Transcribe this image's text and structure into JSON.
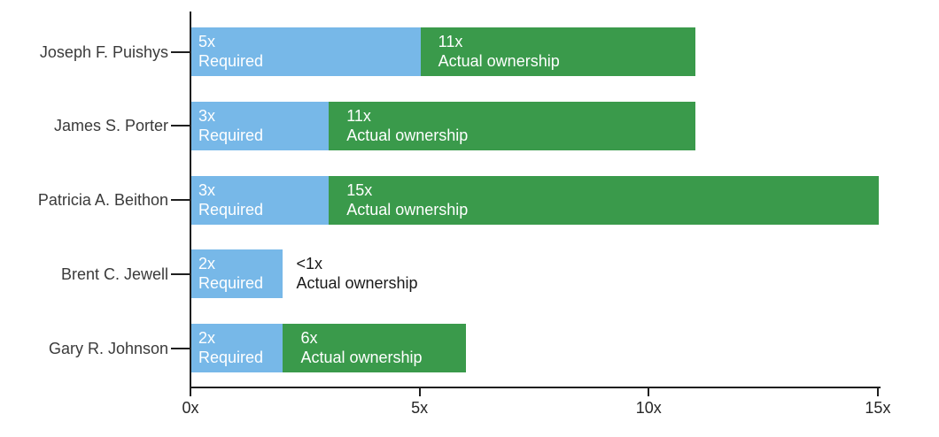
{
  "chart_data": {
    "type": "bar",
    "orientation": "horizontal",
    "title": "",
    "xlabel": "",
    "ylabel": "",
    "categories": [
      "Joseph F. Puishys",
      "James S. Porter",
      "Patricia A. Beithon",
      "Brent C. Jewell",
      "Gary R. Johnson"
    ],
    "series": [
      {
        "name": "Required",
        "sublabel": "Required",
        "color": "#77B8E8",
        "values": [
          5,
          3,
          3,
          2,
          2
        ],
        "value_labels": [
          "5x",
          "3x",
          "3x",
          "2x",
          "2x"
        ]
      },
      {
        "name": "Actual ownership",
        "sublabel": "Actual ownership",
        "color": "#3A9A4B",
        "values": [
          11,
          11,
          15,
          null,
          6
        ],
        "value_labels": [
          "11x",
          "11x",
          "15x",
          "<1x",
          "6x"
        ],
        "drawn_as_bar": [
          true,
          true,
          true,
          false,
          true
        ]
      }
    ],
    "bar_semantics": "actual-ownership segment extends from the required multiple to the actual multiple; when actual is below required, the label is shown in dark text outside the bar with no green segment",
    "x_ticks": [
      {
        "value": 0,
        "label": "0x"
      },
      {
        "value": 5,
        "label": "5x"
      },
      {
        "value": 10,
        "label": "10x"
      },
      {
        "value": 15,
        "label": "15x"
      }
    ],
    "xlim": [
      0,
      15
    ],
    "grid": false,
    "legend": "none"
  },
  "colors": {
    "required_bar": "#77B8E8",
    "actual_bar": "#3A9A4B",
    "axis": "#1F1F1F",
    "category_text": "#3A3A3A",
    "tick_text": "#262626",
    "bar_text": "#FFFFFF",
    "outside_label_text": "#1A1A1A",
    "background": "#FFFFFF"
  }
}
